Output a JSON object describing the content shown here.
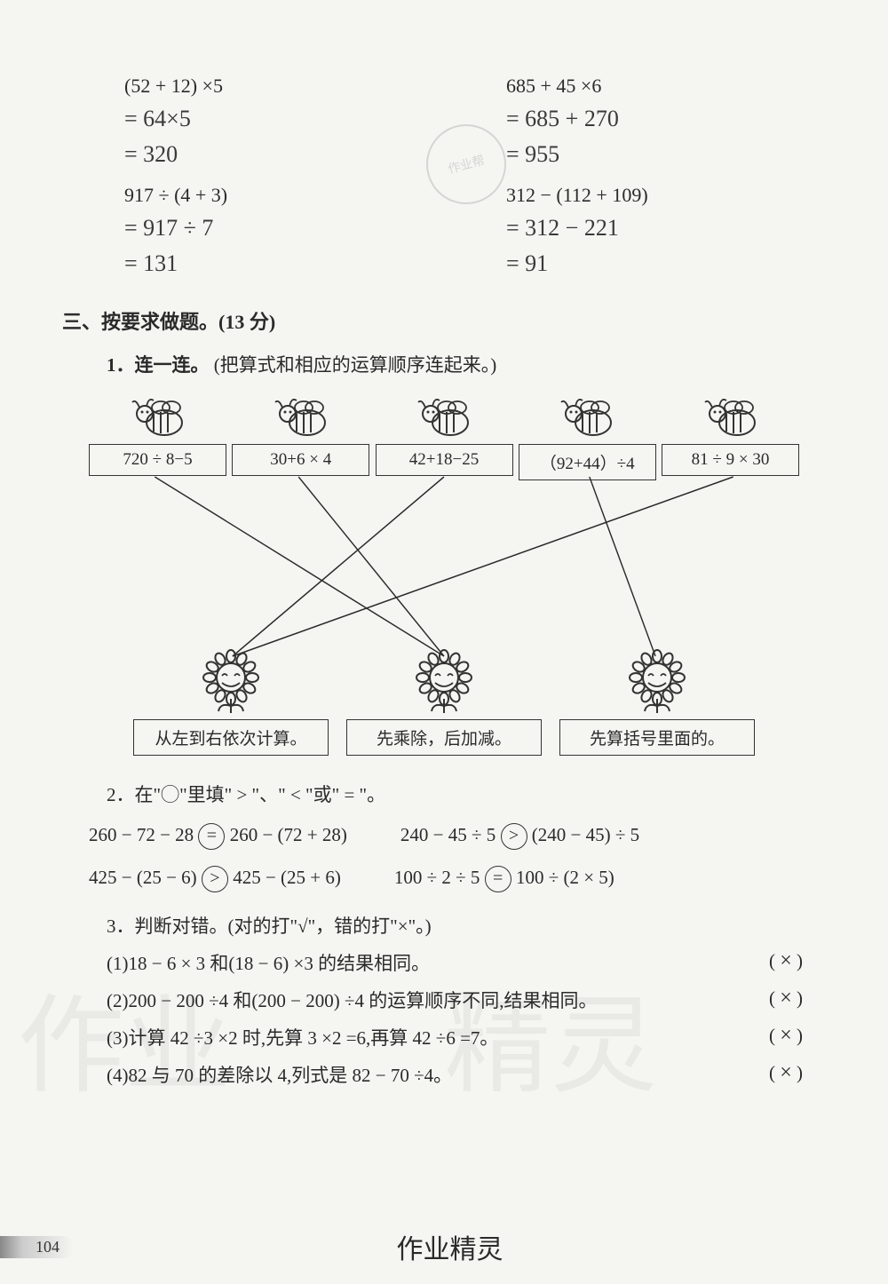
{
  "calc": {
    "c1": {
      "printed": "(52 + 12) ×5",
      "h1": "= 64×5",
      "h2": "= 320"
    },
    "c2": {
      "printed": "685 + 45 ×6",
      "h1": "= 685 + 270",
      "h2": "= 955"
    },
    "c3": {
      "printed": "917 ÷ (4 + 3)",
      "h1": "= 917 ÷ 7",
      "h2": "= 131"
    },
    "c4": {
      "printed": "312 − (112 + 109)",
      "h1": "= 312 − 221",
      "h2": "= 91"
    }
  },
  "section3_title": "三、按要求做题。(13 分)",
  "q1": {
    "title": "1．连一连。",
    "hint": "(把算式和相应的运算顺序连起来。)",
    "tops": [
      "720 ÷ 8−5",
      "30+6 × 4",
      "42+18−25",
      "（92+44）÷4",
      "81 ÷ 9 × 30"
    ],
    "bots": [
      "从左到右依次计算。",
      "先乘除，后加减。",
      "先算括号里面的。"
    ],
    "edges": [
      {
        "from": 0,
        "to": 1
      },
      {
        "from": 1,
        "to": 1
      },
      {
        "from": 2,
        "to": 0
      },
      {
        "from": 3,
        "to": 2
      },
      {
        "from": 4,
        "to": 0
      }
    ],
    "line_color": "#2a2a2a",
    "line_width": 1.5
  },
  "q2": {
    "title": "2．在\"◯\"里填\" > \"、\" < \"或\" = \"。",
    "rows": [
      {
        "l": "260 − 72 − 28",
        "ans": "=",
        "r": "260 − (72 + 28)",
        "l2": "240 − 45 ÷ 5",
        "ans2": ">",
        "r2": "(240 − 45) ÷ 5"
      },
      {
        "l": "425 − (25 − 6)",
        "ans": ">",
        "r": "425 − (25 + 6)",
        "l2": "100 ÷ 2 ÷ 5",
        "ans2": "=",
        "r2": "100 ÷ (2 × 5)"
      }
    ]
  },
  "q3": {
    "title": "3．判断对错。(对的打\"√\"，错的打\"×\"。)",
    "items": [
      {
        "t": "(1)18 − 6 × 3 和(18 − 6) ×3 的结果相同。",
        "a": "×"
      },
      {
        "t": "(2)200 − 200 ÷4 和(200 − 200) ÷4 的运算顺序不同,结果相同。",
        "a": "×"
      },
      {
        "t": "(3)计算 42 ÷3 ×2 时,先算 3 ×2 =6,再算 42 ÷6 =7。",
        "a": "×"
      },
      {
        "t": "(4)82 与 70 的差除以 4,列式是 82 − 70 ÷4。",
        "a": "×"
      }
    ]
  },
  "footer": {
    "page": "104",
    "center": "作业精灵"
  },
  "colors": {
    "text": "#2a2a2a",
    "border": "#333333",
    "bg": "#f5f5f2"
  }
}
